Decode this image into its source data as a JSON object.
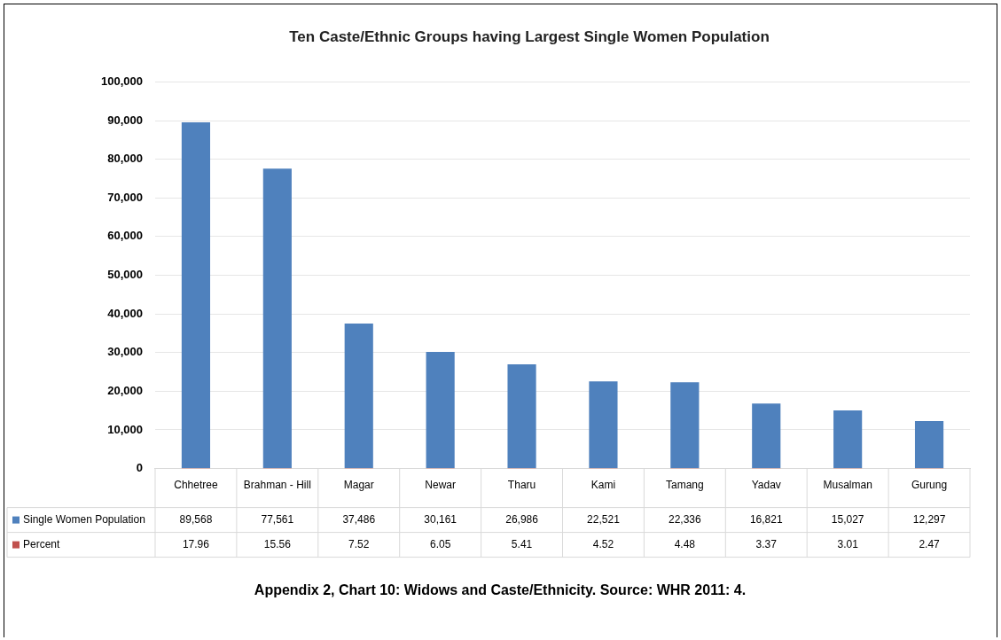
{
  "chart_data": {
    "type": "bar",
    "title": "Ten Caste/Ethnic Groups having Largest Single Women Population",
    "categories": [
      "Chhetree",
      "Brahman - Hill",
      "Magar",
      "Newar",
      "Tharu",
      "Kami",
      "Tamang",
      "Yadav",
      "Musalman",
      "Gurung"
    ],
    "series": [
      {
        "name": "Single Women Population",
        "color": "#4f81bd",
        "values": [
          89568,
          77561,
          37486,
          30161,
          26986,
          22521,
          22336,
          16821,
          15027,
          12297
        ],
        "value_labels": [
          "89,568",
          "77,561",
          "37,486",
          "30,161",
          "26,986",
          "22,521",
          "22,336",
          "16,821",
          "15,027",
          "12,297"
        ]
      },
      {
        "name": "Percent",
        "color": "#c0504d",
        "values": [
          17.96,
          15.56,
          7.52,
          6.05,
          5.41,
          4.52,
          4.48,
          3.37,
          3.01,
          2.47
        ],
        "value_labels": [
          "17.96",
          "15.56",
          "7.52",
          "6.05",
          "5.41",
          "4.52",
          "4.48",
          "3.37",
          "3.01",
          "2.47"
        ]
      }
    ],
    "ylim": [
      0,
      100000
    ],
    "yticks": [
      0,
      {
        "value": 10000,
        "label": "10,000"
      },
      {
        "value": 20000,
        "label": "20,000"
      },
      {
        "value": 30000,
        "label": "30,000"
      },
      {
        "value": 40000,
        "label": "40,000"
      },
      {
        "value": 50000,
        "label": "50,000"
      },
      {
        "value": 60000,
        "label": "60,000"
      },
      {
        "value": 70000,
        "label": "70,000"
      },
      {
        "value": 80000,
        "label": "80,000"
      },
      {
        "value": 90000,
        "label": "90,000"
      },
      {
        "value": 100000,
        "label": "100,000"
      }
    ],
    "grid": "y",
    "legend": "bottom",
    "annotations": [
      "Appendix 2, Chart 10: Widows and Caste/Ethnicity. Source: WHR 2011: 4."
    ]
  }
}
